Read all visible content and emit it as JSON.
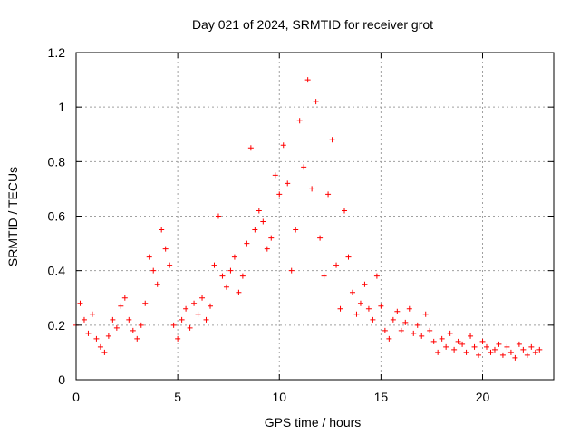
{
  "chart_data": {
    "type": "scatter",
    "title": "Day 021 of 2024, SRMTID for receiver grot",
    "xlabel": "GPS time / hours",
    "ylabel": "SRMTID / TECUs",
    "xlim": [
      0,
      23.5
    ],
    "ylim": [
      0,
      1.2
    ],
    "grid": true,
    "marker": "+",
    "colors": {
      "series": "#ff0000",
      "grid": "#a0a0a0",
      "axis": "#000000"
    },
    "x_ticks": [
      0,
      5,
      10,
      15,
      20
    ],
    "x_tick_labels": [
      "0",
      "5",
      "10",
      "15",
      "20"
    ],
    "y_ticks": [
      0,
      0.2,
      0.4,
      0.6,
      0.8,
      1.0,
      1.2
    ],
    "y_tick_labels": [
      "0",
      "0.2",
      "0.4",
      "0.6",
      "0.8",
      "1",
      "1.2"
    ],
    "series": [
      {
        "name": "SRMTID",
        "x": [
          0.0,
          0.2,
          0.4,
          0.6,
          0.8,
          1.0,
          1.2,
          1.4,
          1.6,
          1.8,
          2.0,
          2.2,
          2.4,
          2.6,
          2.8,
          3.0,
          3.2,
          3.4,
          3.6,
          3.8,
          4.0,
          4.2,
          4.4,
          4.6,
          4.8,
          5.0,
          5.2,
          5.4,
          5.6,
          5.8,
          6.0,
          6.2,
          6.4,
          6.6,
          6.8,
          7.0,
          7.2,
          7.4,
          7.6,
          7.8,
          8.0,
          8.2,
          8.4,
          8.6,
          8.8,
          9.0,
          9.2,
          9.4,
          9.6,
          9.8,
          10.0,
          10.2,
          10.4,
          10.6,
          10.8,
          11.0,
          11.2,
          11.4,
          11.6,
          11.8,
          12.0,
          12.2,
          12.4,
          12.6,
          12.8,
          13.0,
          13.2,
          13.4,
          13.6,
          13.8,
          14.0,
          14.2,
          14.4,
          14.6,
          14.8,
          15.0,
          15.2,
          15.4,
          15.6,
          15.8,
          16.0,
          16.2,
          16.4,
          16.6,
          16.8,
          17.0,
          17.2,
          17.4,
          17.6,
          17.8,
          18.0,
          18.2,
          18.4,
          18.6,
          18.8,
          19.0,
          19.2,
          19.4,
          19.6,
          19.8,
          20.0,
          20.2,
          20.4,
          20.6,
          20.8,
          21.0,
          21.2,
          21.4,
          21.6,
          21.8,
          22.0,
          22.2,
          22.4,
          22.6,
          22.8
        ],
        "y": [
          0.2,
          0.28,
          0.22,
          0.17,
          0.24,
          0.15,
          0.12,
          0.1,
          0.16,
          0.22,
          0.19,
          0.27,
          0.3,
          0.22,
          0.18,
          0.15,
          0.2,
          0.28,
          0.45,
          0.4,
          0.35,
          0.55,
          0.48,
          0.42,
          0.2,
          0.15,
          0.22,
          0.26,
          0.19,
          0.28,
          0.24,
          0.3,
          0.22,
          0.27,
          0.42,
          0.6,
          0.38,
          0.34,
          0.4,
          0.45,
          0.32,
          0.38,
          0.5,
          0.85,
          0.55,
          0.62,
          0.58,
          0.48,
          0.52,
          0.75,
          0.68,
          0.86,
          0.72,
          0.4,
          0.55,
          0.95,
          0.78,
          1.1,
          0.7,
          1.02,
          0.52,
          0.38,
          0.68,
          0.88,
          0.42,
          0.26,
          0.62,
          0.45,
          0.32,
          0.24,
          0.28,
          0.35,
          0.26,
          0.22,
          0.38,
          0.27,
          0.18,
          0.15,
          0.22,
          0.25,
          0.18,
          0.21,
          0.26,
          0.17,
          0.2,
          0.16,
          0.24,
          0.18,
          0.14,
          0.1,
          0.15,
          0.12,
          0.17,
          0.11,
          0.14,
          0.13,
          0.1,
          0.16,
          0.12,
          0.09,
          0.14,
          0.12,
          0.1,
          0.11,
          0.13,
          0.09,
          0.12,
          0.1,
          0.08,
          0.13,
          0.11,
          0.09,
          0.12,
          0.1,
          0.11
        ]
      }
    ]
  }
}
